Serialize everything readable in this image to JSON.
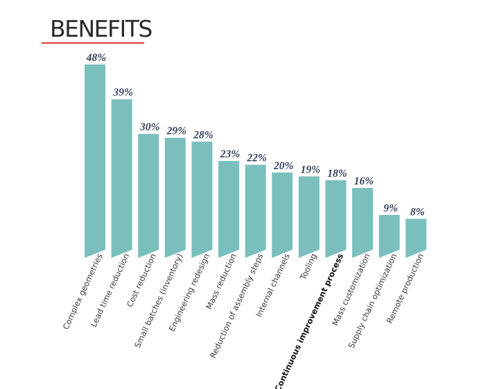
{
  "header": {
    "title": "BENEFITS"
  },
  "colors": {
    "bar": "#7bbfbd",
    "accent": "#e03a3a",
    "value_text": "#36435c"
  },
  "chart_data": {
    "type": "bar",
    "title": "BENEFITS",
    "xlabel": "",
    "ylabel": "",
    "ylim": [
      0,
      48
    ],
    "grid": false,
    "categories": [
      "Complex geometries",
      "Lead time reduction",
      "Cost reduction",
      "Small batches (inventory)",
      "Engineering redesign",
      "Mass reduction",
      "Reduction of assembly steps",
      "Internal channels",
      "Tooling",
      "Continuous improvement process",
      "Mass customization",
      "Supply chain optimization",
      "Remote production"
    ],
    "values": [
      48,
      39,
      30,
      29,
      28,
      23,
      22,
      20,
      19,
      18,
      16,
      9,
      8
    ],
    "value_labels": [
      "48%",
      "39%",
      "30%",
      "29%",
      "28%",
      "23%",
      "22%",
      "20%",
      "19%",
      "18%",
      "16%",
      "9%",
      "8%"
    ],
    "emphasized_category": "Continuous improvement process"
  }
}
